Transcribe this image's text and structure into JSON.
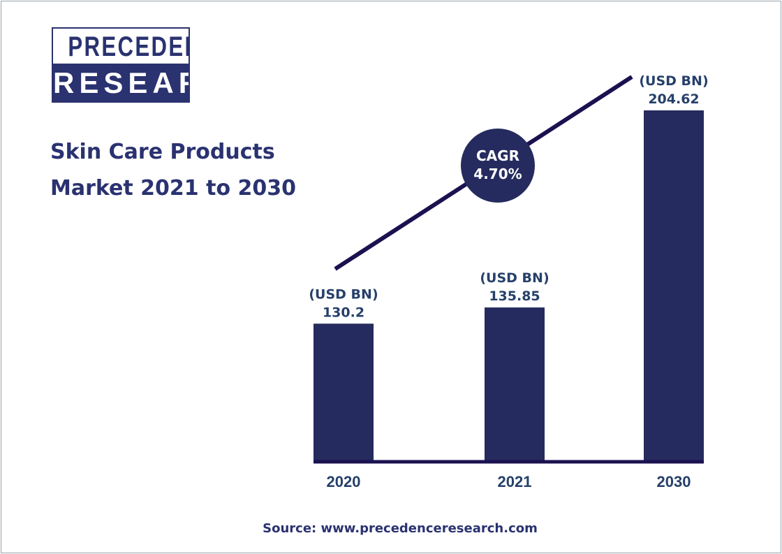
{
  "logo": {
    "line1": "PRECEDENCE",
    "line2": "RESEARCH"
  },
  "title_lines": [
    "Skin Care Products",
    "Market 2021 to 2030"
  ],
  "source": "Source: www.precedenceresearch.com",
  "colors": {
    "bar": "#252b5e",
    "trend_line": "#1b1150",
    "text": "#2a3270"
  },
  "chart_data": {
    "type": "bar",
    "title": "Skin Care Products Market 2021 to 2030",
    "categories": [
      "2020",
      "2021",
      "2030"
    ],
    "values": [
      130.2,
      135.85,
      204.62
    ],
    "unit_label": "(USD BN)",
    "value_labels": [
      "130.2",
      "135.85",
      "204.62"
    ],
    "annotation": {
      "line1": "CAGR",
      "line2": "4.70%"
    },
    "grid": false,
    "legend": "none"
  }
}
